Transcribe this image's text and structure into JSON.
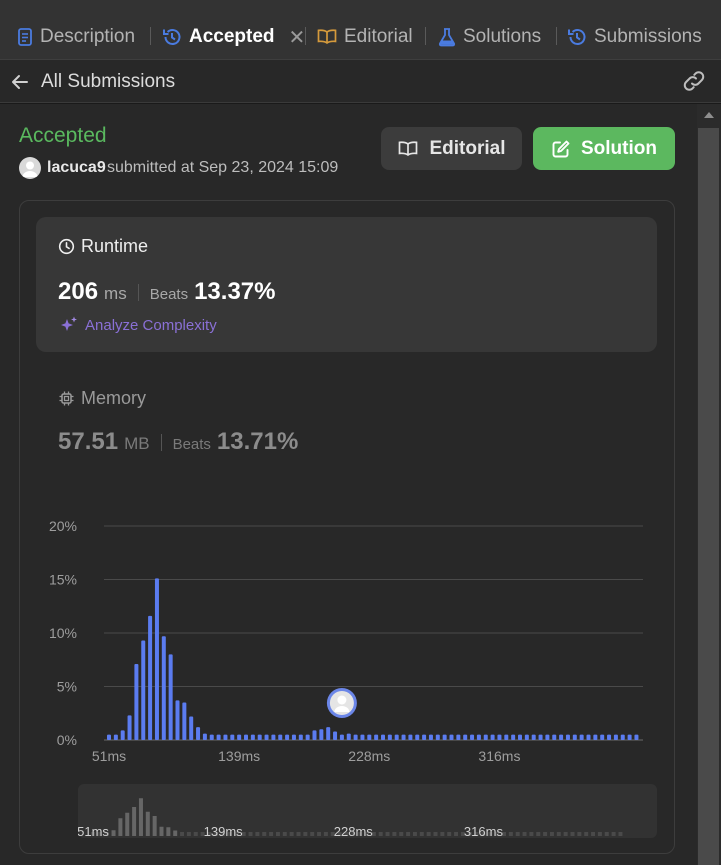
{
  "tabs": [
    {
      "label": "Description",
      "icon": "description-icon",
      "active": false
    },
    {
      "label": "Accepted",
      "icon": "history-icon",
      "active": true,
      "closable": true
    },
    {
      "label": "Editorial",
      "icon": "book-icon",
      "active": false
    },
    {
      "label": "Solutions",
      "icon": "flask-icon",
      "active": false
    },
    {
      "label": "Submissions",
      "icon": "history-icon",
      "active": false
    }
  ],
  "subheader": {
    "title": "All Submissions"
  },
  "submission": {
    "status": "Accepted",
    "user": "lacuca9",
    "submitted_text": "submitted at Sep 23, 2024 15:09"
  },
  "actions": {
    "editorial_label": "Editorial",
    "solution_label": "Solution"
  },
  "runtime": {
    "title": "Runtime",
    "value": "206",
    "unit": "ms",
    "beats_label": "Beats",
    "beats_value": "13.37%",
    "analyze_label": "Analyze Complexity"
  },
  "memory": {
    "title": "Memory",
    "value": "57.51",
    "unit": "MB",
    "beats_label": "Beats",
    "beats_value": "13.71%"
  },
  "colors": {
    "accepted_green": "#5ab95f",
    "solution_button": "#5cb85f",
    "bar_blue": "#5b7cf0",
    "analyze_purple": "#8a70d6",
    "mini_bar": "#4a4a4a",
    "mini_bar_peak": "#666666"
  },
  "chart_data": {
    "type": "bar",
    "title": "",
    "xlabel": "",
    "ylabel": "",
    "ylim": [
      0,
      20
    ],
    "y_ticks": [
      "0%",
      "5%",
      "10%",
      "15%",
      "20%"
    ],
    "y_tick_values": [
      0,
      5,
      10,
      15,
      20
    ],
    "x_ticks": [
      "51ms",
      "139ms",
      "228ms",
      "316ms"
    ],
    "x_tick_indices": [
      0,
      19,
      38,
      57
    ],
    "marker_index": 34,
    "grid": true,
    "values": [
      0.5,
      0.5,
      0.9,
      2.3,
      7.1,
      9.3,
      11.6,
      15.1,
      9.7,
      8.0,
      3.7,
      3.5,
      2.2,
      1.2,
      0.6,
      0.5,
      0.5,
      0.5,
      0.5,
      0.5,
      0.5,
      0.5,
      0.5,
      0.5,
      0.5,
      0.5,
      0.5,
      0.5,
      0.5,
      0.5,
      0.9,
      1.0,
      1.2,
      0.8,
      0.5,
      0.6,
      0.5,
      0.5,
      0.5,
      0.5,
      0.5,
      0.5,
      0.5,
      0.5,
      0.5,
      0.5,
      0.5,
      0.5,
      0.5,
      0.5,
      0.5,
      0.5,
      0.5,
      0.5,
      0.5,
      0.5,
      0.5,
      0.5,
      0.5,
      0.5,
      0.5,
      0.5,
      0.5,
      0.5,
      0.5,
      0.5,
      0.5,
      0.5,
      0.5,
      0.5,
      0.5,
      0.5,
      0.5,
      0.5,
      0.5,
      0.5,
      0.5,
      0.5
    ]
  }
}
